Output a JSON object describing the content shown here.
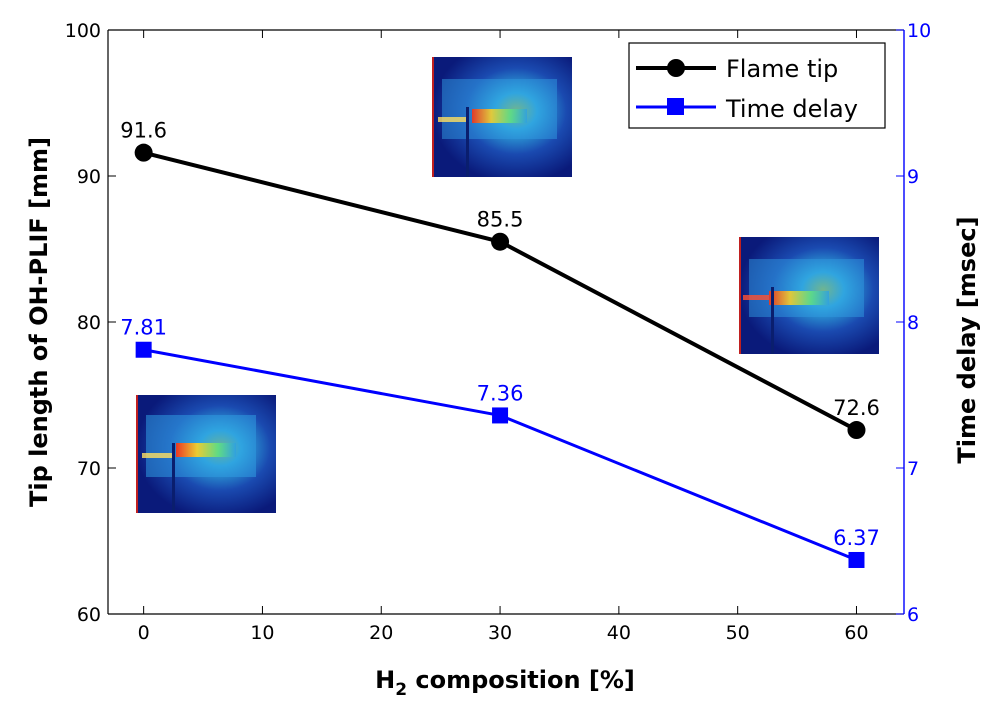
{
  "chart_data": {
    "type": "line",
    "xlabel_main": "H",
    "xlabel_sub": "2",
    "xlabel_rest": " composition [%]",
    "ylabel_left": "Tip length of OH-PLIF [mm]",
    "ylabel_right": "Time delay [msec]",
    "xlim": [
      -3,
      64
    ],
    "ylim_left": [
      60,
      100
    ],
    "ylim_right": [
      6,
      10
    ],
    "x_ticks": [
      "0",
      "10",
      "20",
      "30",
      "40",
      "50",
      "60"
    ],
    "y_left_ticks": [
      "60",
      "70",
      "80",
      "90",
      "100"
    ],
    "y_right_ticks": [
      "6",
      "7",
      "8",
      "9",
      "10"
    ],
    "legend_position": "top-right",
    "grid": false,
    "series": [
      {
        "name": "Flame tip",
        "axis": "left",
        "color": "#000000",
        "marker": "circle",
        "x": [
          0,
          30,
          60
        ],
        "y": [
          91.6,
          85.5,
          72.6
        ],
        "labels": [
          "91.6",
          "85.5",
          "72.6"
        ]
      },
      {
        "name": "Time delay",
        "axis": "right",
        "color": "#0000ff",
        "marker": "square",
        "x": [
          0,
          30,
          60
        ],
        "y": [
          7.81,
          7.36,
          6.37
        ],
        "labels": [
          "7.81",
          "7.36",
          "6.37"
        ]
      }
    ],
    "right_axis_color": "#0000ff"
  }
}
